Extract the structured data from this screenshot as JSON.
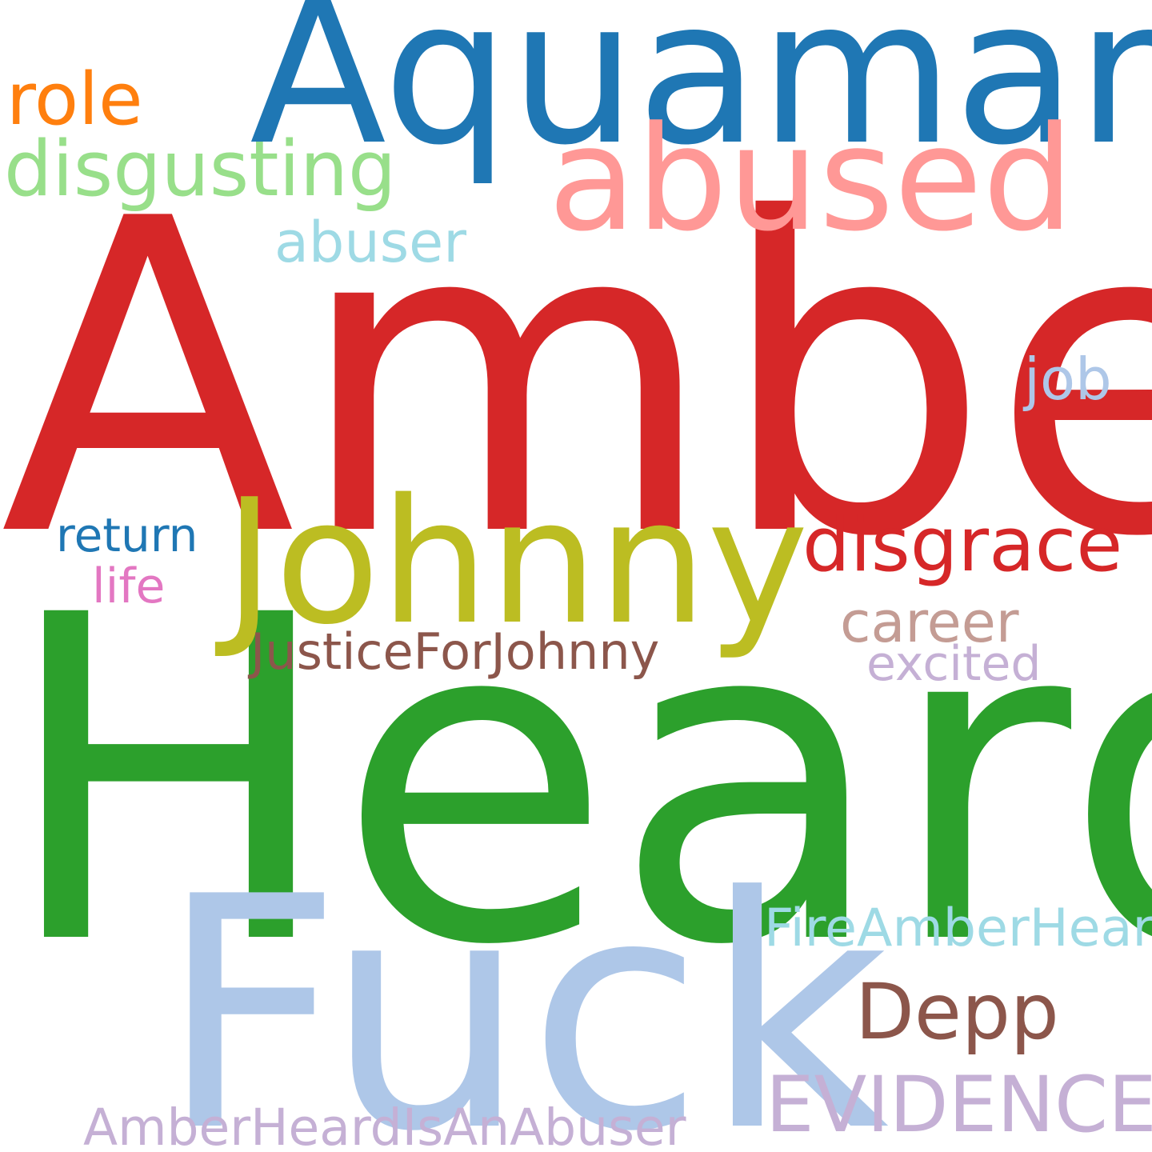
{
  "cloud": {
    "background": "#ffffff",
    "words": {
      "amber": {
        "text": "Amber",
        "color": "#d62728"
      },
      "heard": {
        "text": "Heard",
        "color": "#2ca02c"
      },
      "aquaman": {
        "text": "Aquaman",
        "color": "#1f77b4"
      },
      "fuck": {
        "text": "Fuck",
        "color": "#aec7e8"
      },
      "johnny": {
        "text": "Johnny",
        "color": "#bcbd22"
      },
      "abused": {
        "text": "abused",
        "color": "#ff9896"
      },
      "role": {
        "text": "role",
        "color": "#ff7f0e"
      },
      "disgusting": {
        "text": "disgusting",
        "color": "#98df8a"
      },
      "abuser": {
        "text": "abuser",
        "color": "#9edae5"
      },
      "job": {
        "text": "job",
        "color": "#aec7e8"
      },
      "return": {
        "text": "return",
        "color": "#1f77b4"
      },
      "life": {
        "text": "life",
        "color": "#e377c2"
      },
      "disgrace": {
        "text": "disgrace",
        "color": "#d62728"
      },
      "career": {
        "text": "career",
        "color": "#c49c94"
      },
      "excited": {
        "text": "excited",
        "color": "#c5b0d5"
      },
      "justice": {
        "text": "JusticeForJohnny",
        "color": "#8c564b"
      },
      "fire": {
        "text": "FireAmberHeard",
        "color": "#9edae5"
      },
      "depp": {
        "text": "Depp",
        "color": "#8c564b"
      },
      "evidence": {
        "text": "EVIDENCE",
        "color": "#c5b0d5"
      },
      "abuser_tag": {
        "text": "AmberHeardIsAnAbuser",
        "color": "#c5b0d5"
      }
    }
  }
}
